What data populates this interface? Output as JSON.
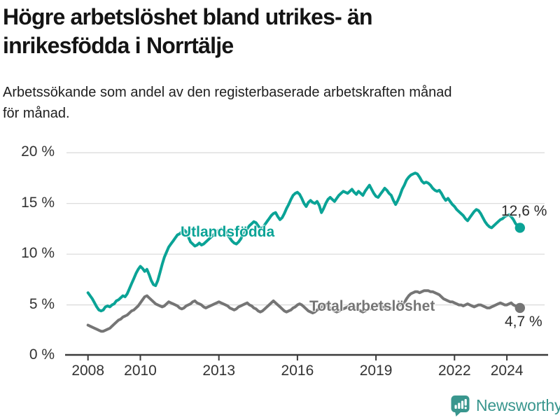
{
  "header": {
    "title": "Högre arbetslöshet bland utrikes- än inrikesfödda i Norrtälje",
    "subtitle": "Arbetssökande som andel av den registerbaserade arbetskraften månad för månad."
  },
  "chart_data": {
    "type": "line",
    "title": "Högre arbetslöshet bland utrikes- än inrikesfödda i Norrtälje",
    "xlabel": "",
    "ylabel": "Arbetssökande som andel av den registerbaserade arbetskraften",
    "x_start_year": 2008,
    "points_per_year": 12,
    "x_end_label": "2024",
    "x_tick_years": [
      2008,
      2010,
      2013,
      2016,
      2019,
      2022,
      2024
    ],
    "y_ticks": [
      {
        "value": 0,
        "label": "0 %"
      },
      {
        "value": 5,
        "label": "5 %"
      },
      {
        "value": 10,
        "label": "10 %"
      },
      {
        "value": 15,
        "label": "15 %"
      },
      {
        "value": 20,
        "label": "20 %"
      }
    ],
    "ylim": [
      0,
      20
    ],
    "grid": true,
    "legend_position": "inline-on-chart",
    "series": [
      {
        "name": "Utlandsfödda",
        "color": "#0aa396",
        "end_label": "12,6 %",
        "end_value": 12.6,
        "values": [
          6.2,
          5.9,
          5.6,
          5.2,
          4.8,
          4.5,
          4.4,
          4.5,
          4.8,
          4.9,
          4.8,
          5.0,
          5.1,
          5.4,
          5.5,
          5.7,
          5.9,
          5.8,
          6.1,
          6.6,
          7.1,
          7.6,
          8.1,
          8.5,
          8.8,
          8.6,
          8.3,
          8.5,
          8.0,
          7.4,
          7.0,
          6.9,
          7.4,
          8.2,
          9.0,
          9.7,
          10.2,
          10.7,
          11.0,
          11.3,
          11.6,
          11.9,
          12.0,
          12.2,
          12.4,
          12.2,
          11.7,
          11.2,
          11.0,
          10.8,
          10.9,
          11.1,
          10.9,
          11.0,
          11.2,
          11.4,
          11.6,
          11.8,
          12.0,
          12.2,
          12.4,
          12.5,
          12.4,
          12.2,
          11.9,
          11.6,
          11.3,
          11.1,
          11.0,
          11.2,
          11.5,
          11.9,
          12.2,
          12.5,
          12.8,
          13.0,
          13.2,
          13.1,
          12.8,
          12.5,
          12.6,
          12.9,
          13.2,
          13.5,
          13.8,
          14.0,
          14.1,
          13.7,
          13.4,
          13.6,
          14.0,
          14.5,
          14.9,
          15.4,
          15.8,
          16.0,
          16.1,
          15.9,
          15.5,
          15.0,
          14.7,
          15.1,
          15.3,
          15.1,
          15.0,
          15.2,
          14.8,
          14.1,
          14.5,
          15.0,
          15.4,
          15.6,
          15.4,
          15.2,
          15.5,
          15.8,
          16.0,
          16.2,
          16.1,
          16.0,
          16.2,
          16.4,
          16.1,
          15.9,
          16.2,
          16.0,
          15.8,
          16.2,
          16.5,
          16.8,
          16.4,
          16.0,
          15.7,
          15.6,
          15.9,
          16.2,
          16.5,
          16.3,
          16.0,
          15.8,
          15.3,
          14.9,
          15.3,
          15.8,
          16.4,
          16.8,
          17.3,
          17.6,
          17.8,
          17.9,
          18.0,
          17.9,
          17.6,
          17.2,
          17.0,
          17.1,
          17.0,
          16.8,
          16.5,
          16.3,
          16.2,
          16.3,
          16.0,
          15.6,
          15.3,
          15.5,
          15.2,
          14.9,
          14.7,
          14.4,
          14.2,
          14.0,
          13.8,
          13.5,
          13.3,
          13.6,
          13.9,
          14.2,
          14.4,
          14.3,
          14.0,
          13.6,
          13.2,
          12.9,
          12.7,
          12.6,
          12.8,
          13.0,
          13.2,
          13.4,
          13.5,
          13.7,
          13.8,
          13.9,
          13.7,
          13.4,
          13.0,
          12.8,
          12.6
        ]
      },
      {
        "name": "Total arbetslöshet",
        "color": "#757575",
        "end_label": "4,7 %",
        "end_value": 4.7,
        "values": [
          3.0,
          2.9,
          2.8,
          2.7,
          2.6,
          2.5,
          2.4,
          2.4,
          2.5,
          2.6,
          2.7,
          2.9,
          3.1,
          3.3,
          3.5,
          3.6,
          3.8,
          3.9,
          4.0,
          4.2,
          4.4,
          4.5,
          4.7,
          4.9,
          5.2,
          5.5,
          5.8,
          5.9,
          5.7,
          5.5,
          5.3,
          5.1,
          5.0,
          4.9,
          4.8,
          4.9,
          5.1,
          5.3,
          5.2,
          5.1,
          5.0,
          4.9,
          4.7,
          4.6,
          4.7,
          4.9,
          5.0,
          5.1,
          5.3,
          5.4,
          5.2,
          5.1,
          5.0,
          4.8,
          4.7,
          4.8,
          4.9,
          5.0,
          5.1,
          5.2,
          5.3,
          5.2,
          5.1,
          5.0,
          4.9,
          4.7,
          4.6,
          4.5,
          4.6,
          4.8,
          4.9,
          5.0,
          5.1,
          5.2,
          5.0,
          4.9,
          4.7,
          4.6,
          4.4,
          4.3,
          4.4,
          4.6,
          4.8,
          5.0,
          5.2,
          5.4,
          5.2,
          5.0,
          4.8,
          4.6,
          4.4,
          4.3,
          4.4,
          4.5,
          4.7,
          4.8,
          5.0,
          5.1,
          5.0,
          4.8,
          4.6,
          4.4,
          4.3,
          4.2,
          4.3,
          4.5,
          4.6,
          4.8,
          4.9,
          5.0,
          4.9,
          4.7,
          4.6,
          4.4,
          4.3,
          4.4,
          4.5,
          4.6,
          4.7,
          4.8,
          4.9,
          5.0,
          4.8,
          4.7,
          4.5,
          4.4,
          4.3,
          4.4,
          4.5,
          4.6,
          4.7,
          4.8,
          4.9,
          5.0,
          4.9,
          4.8,
          4.7,
          4.6,
          4.5,
          4.6,
          4.7,
          4.8,
          4.9,
          5.0,
          5.1,
          5.2,
          5.6,
          5.9,
          6.1,
          6.2,
          6.3,
          6.3,
          6.2,
          6.3,
          6.4,
          6.4,
          6.4,
          6.3,
          6.3,
          6.2,
          6.1,
          6.0,
          5.8,
          5.6,
          5.5,
          5.4,
          5.3,
          5.3,
          5.2,
          5.1,
          5.0,
          5.0,
          4.9,
          5.0,
          5.1,
          5.0,
          4.9,
          4.8,
          4.9,
          5.0,
          5.0,
          4.9,
          4.8,
          4.7,
          4.7,
          4.8,
          4.9,
          5.0,
          5.1,
          5.2,
          5.1,
          5.0,
          5.0,
          5.1,
          5.2,
          5.0,
          4.9,
          4.8,
          4.7
        ]
      }
    ]
  },
  "colors": {
    "gridline": "#dcdcdc",
    "axis": "#3b3b3b",
    "tick_text": "#333333",
    "title_text": "#141414",
    "value_label_text": "#2b2b2b"
  },
  "footer": {
    "brand": "Newsworthy",
    "brand_color": "#39968e",
    "logo_icon": "bar-chart-speech-bubble-icon"
  }
}
